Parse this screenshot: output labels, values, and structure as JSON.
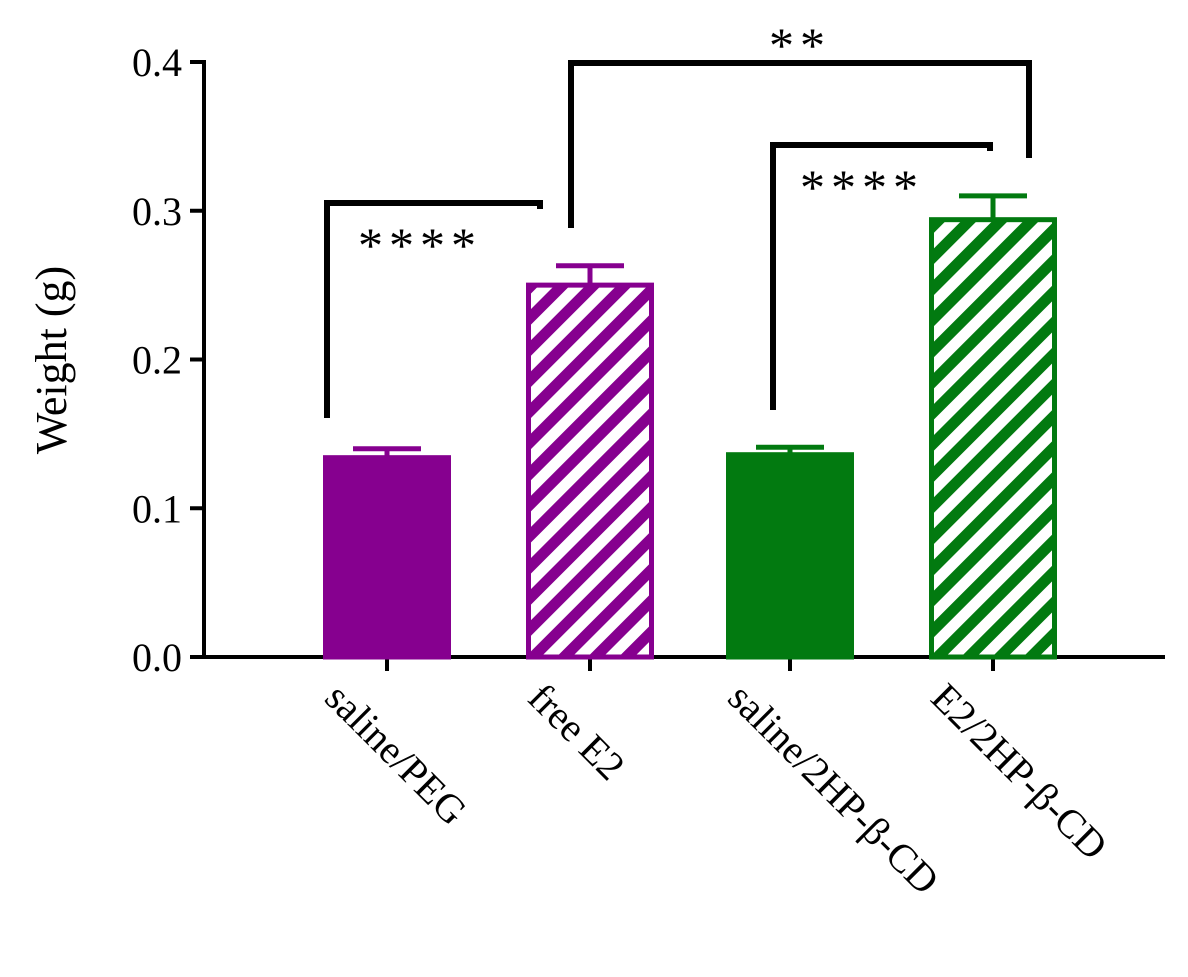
{
  "chart_data": {
    "type": "bar",
    "title": "",
    "xlabel": "",
    "ylabel": "Weight (g)",
    "ylim": [
      0,
      0.4
    ],
    "yticks": [
      "0.0",
      "0.1",
      "0.2",
      "0.3",
      "0.4"
    ],
    "grid": false,
    "categories": [
      "saline/PEG",
      "free E2",
      "saline/2HP-β-CD",
      "E2/2HP-β-CD"
    ],
    "values": [
      0.134,
      0.25,
      0.136,
      0.294
    ],
    "errors": [
      0.006,
      0.013,
      0.005,
      0.016
    ],
    "colors": [
      "#86008f",
      "#86008f",
      "#027a10",
      "#027a10"
    ],
    "fill_style": [
      "solid",
      "hatched",
      "solid",
      "hatched"
    ],
    "significance": [
      {
        "from": 0,
        "to": 1,
        "label": "****"
      },
      {
        "from": 2,
        "to": 3,
        "label": "****"
      },
      {
        "from": 1,
        "to": 3,
        "label": "**"
      }
    ]
  }
}
